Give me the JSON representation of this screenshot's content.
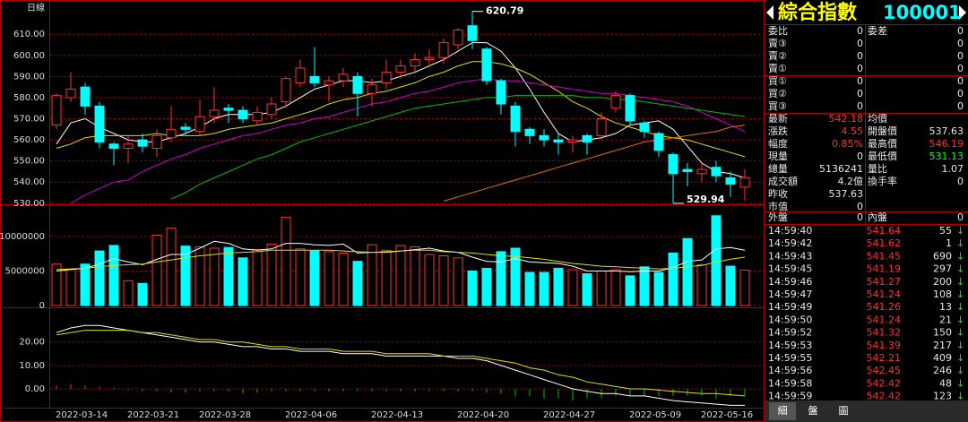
{
  "chart_data": [
    {
      "type": "candlestick",
      "label": "日線",
      "up_color": "#ff3232",
      "down_color": "#00ffff",
      "open": [
        567,
        580,
        585,
        576,
        558,
        556,
        560,
        556,
        561,
        566,
        564,
        571,
        575,
        574,
        569,
        572,
        578,
        587,
        590,
        586,
        588,
        590,
        582,
        587,
        592,
        595,
        598,
        599,
        605,
        614,
        603,
        588,
        576,
        565,
        562,
        560,
        559,
        562,
        562,
        575,
        581,
        568,
        563,
        553,
        546,
        544,
        547,
        542,
        537.63
      ],
      "high": [
        582,
        592,
        587,
        578,
        559,
        562,
        563,
        565,
        576,
        568,
        579,
        585,
        577,
        576,
        576,
        580,
        590,
        598,
        604,
        590,
        594,
        592,
        589,
        598,
        598,
        601,
        603,
        608,
        613,
        620.79,
        604,
        589,
        578,
        566,
        565,
        563,
        562,
        563,
        573,
        583,
        582,
        569,
        564,
        554,
        549,
        549,
        550,
        545,
        546.19
      ],
      "low": [
        565,
        578,
        572,
        556,
        548,
        549,
        554,
        552,
        559,
        563,
        562,
        568,
        568,
        568,
        567,
        570,
        575,
        585,
        585,
        578,
        585,
        571,
        576,
        584,
        589,
        592,
        594,
        596,
        603,
        603,
        586,
        572,
        557,
        558,
        557,
        553,
        554,
        553,
        560,
        573,
        567,
        561,
        552,
        529.94,
        538,
        540,
        540,
        533,
        531.13
      ],
      "close": [
        581,
        584,
        576,
        559,
        556,
        558,
        557,
        562,
        565,
        565,
        571,
        574,
        574,
        570,
        573,
        577,
        589,
        594,
        587,
        588,
        591,
        582,
        586,
        592,
        595,
        598,
        599,
        606,
        612,
        607,
        588,
        577,
        564,
        562,
        560,
        559,
        560,
        559,
        570,
        581,
        569,
        564,
        555,
        544,
        545,
        546,
        543,
        539,
        542.18
      ],
      "series": [
        {
          "color": "#ffffff",
          "values": [
            558,
            568,
            570,
            566,
            563,
            560,
            559,
            559,
            561,
            563,
            566,
            570,
            572,
            572,
            572,
            573,
            576,
            580,
            584,
            586,
            588,
            588,
            587,
            588,
            590,
            592,
            595,
            598,
            602,
            606,
            606,
            602,
            594,
            584,
            573,
            563,
            559,
            560,
            561,
            563,
            567,
            568,
            569,
            565,
            557,
            549,
            545,
            544,
            542
          ]
        },
        {
          "color": "#e0e000",
          "values": [
            556,
            558,
            561,
            562,
            562,
            562,
            562,
            563,
            562,
            562,
            562,
            563,
            565,
            566,
            567,
            568,
            570,
            572,
            574,
            577,
            579,
            580,
            582,
            583,
            585,
            587,
            590,
            592,
            595,
            597,
            597,
            596,
            594,
            591,
            587,
            583,
            578,
            575,
            571,
            568,
            566,
            564,
            562,
            561,
            560,
            558,
            556,
            554,
            552
          ]
        },
        {
          "color": "#d000d0",
          "values": [
            null,
            530,
            534,
            537,
            540,
            541,
            545,
            548,
            551,
            553,
            556,
            558,
            560,
            562,
            563,
            565,
            567,
            568,
            570,
            571,
            573,
            575,
            577,
            578,
            580,
            582,
            583,
            585,
            587,
            588,
            589,
            588,
            588,
            587,
            586,
            585,
            584,
            583,
            582,
            582,
            581,
            580,
            579,
            578,
            576,
            573,
            570,
            567,
            564
          ]
        },
        {
          "color": "#00c000",
          "values": [
            null,
            null,
            null,
            null,
            null,
            null,
            null,
            null,
            532,
            535,
            539,
            542,
            545,
            548,
            551,
            553,
            556,
            559,
            561,
            563,
            565,
            567,
            569,
            571,
            573,
            575,
            576,
            577,
            578,
            579,
            580,
            580,
            581,
            581,
            581,
            581,
            581,
            580,
            580,
            579,
            579,
            578,
            577,
            576,
            575,
            574,
            573,
            572,
            571
          ]
        },
        {
          "color": "#e87000",
          "values": [
            null,
            null,
            null,
            null,
            null,
            null,
            null,
            null,
            null,
            null,
            null,
            null,
            null,
            null,
            null,
            null,
            null,
            null,
            null,
            null,
            null,
            null,
            null,
            null,
            null,
            null,
            null,
            531,
            533,
            535,
            537,
            539,
            541,
            543,
            545,
            547,
            549,
            551,
            553,
            555,
            557,
            559,
            560,
            561,
            562,
            563,
            564,
            566,
            567
          ]
        }
      ],
      "ylim": [
        529.5,
        624.5
      ],
      "yticks": [
        {
          "value": 530,
          "label": "530.00"
        },
        {
          "value": 540,
          "label": "540.00"
        },
        {
          "value": 550,
          "label": "550.00"
        },
        {
          "value": 560,
          "label": "560.00"
        },
        {
          "value": 570,
          "label": "570.00"
        },
        {
          "value": 580,
          "label": "580.00"
        },
        {
          "value": 590,
          "label": "590.00"
        },
        {
          "value": 600,
          "label": "600.00"
        },
        {
          "value": 610,
          "label": "610.00"
        }
      ],
      "grid": true
    },
    {
      "type": "bar",
      "values": [
        6000000,
        5200000,
        6000000,
        7900000,
        8700000,
        3600000,
        3200000,
        10200000,
        11200000,
        8600000,
        8500000,
        8300000,
        8400000,
        6900000,
        8100000,
        8900000,
        12800000,
        8200000,
        7900000,
        7800000,
        7600000,
        6400000,
        8800000,
        8000000,
        8700000,
        8500000,
        7400000,
        7200000,
        6900000,
        5000000,
        5400000,
        7800000,
        8300000,
        4800000,
        4800000,
        5400000,
        5200000,
        4600000,
        5000000,
        5200000,
        4300000,
        5600000,
        4800000,
        7600000,
        9700000,
        5900000,
        13000000,
        5700000,
        5136241
      ],
      "series": [
        {
          "color": "#ffffff",
          "values": [
            5000000,
            5200000,
            5400000,
            6000000,
            6800000,
            6300000,
            5900000,
            6700000,
            7400000,
            7400000,
            8300000,
            9300000,
            9000000,
            8200000,
            8000000,
            8200000,
            9000000,
            9000000,
            8800000,
            8700000,
            8900000,
            7600000,
            7700000,
            7700000,
            7900000,
            8100000,
            8300000,
            7900000,
            7700000,
            7000000,
            6400000,
            6300000,
            6800000,
            6300000,
            6200000,
            6100000,
            5700000,
            5000000,
            5000000,
            5000000,
            4900000,
            5000000,
            5000000,
            5500000,
            6400000,
            6600000,
            8200000,
            8400000,
            8000000
          ]
        },
        {
          "color": "#e0e000",
          "values": [
            5200000,
            5300000,
            5400000,
            5600000,
            5800000,
            5900000,
            6000000,
            6300000,
            6600000,
            6900000,
            7200000,
            7400000,
            7600000,
            7700000,
            7800000,
            8000000,
            8000000,
            8000000,
            8000000,
            8000000,
            7900000,
            7800000,
            7700000,
            7800000,
            7900000,
            8000000,
            8000000,
            7800000,
            7700000,
            7600000,
            7400000,
            7200000,
            7100000,
            6900000,
            6700000,
            6400000,
            6100000,
            5900000,
            5700000,
            5600000,
            5500000,
            5400000,
            5300000,
            5400000,
            5600000,
            5800000,
            6300000,
            6700000,
            7000000
          ]
        }
      ],
      "ylim": [
        0,
        14400000
      ],
      "yticks": [
        0,
        5000000,
        10000000
      ],
      "grid": true
    },
    {
      "type": "line",
      "categories": [
        "2022-03-14",
        null,
        null,
        null,
        null,
        "2022-03-21",
        null,
        null,
        null,
        null,
        "2022-03-28",
        null,
        null,
        null,
        null,
        null,
        "2022-04-06",
        null,
        null,
        null,
        null,
        null,
        "2022-04-13",
        null,
        null,
        null,
        null,
        null,
        "2022-04-20",
        null,
        null,
        null,
        null,
        null,
        "2022-04-27",
        null,
        null,
        null,
        null,
        null,
        "2022-05-09",
        null,
        null,
        null,
        null,
        "2022-05-16",
        null,
        null,
        null
      ],
      "series": [
        {
          "color": "#ffffff",
          "values": [
            24,
            26,
            27,
            27,
            26,
            25,
            24,
            23,
            22,
            21,
            20,
            20,
            19,
            18,
            18,
            17,
            17,
            16,
            16,
            16,
            15,
            15,
            15,
            14,
            14,
            14,
            14,
            14,
            13,
            13,
            12,
            10,
            8,
            6,
            4,
            2,
            0,
            -1,
            -2,
            -2,
            -3,
            -3,
            -4,
            -5,
            -5.5,
            -6,
            -6.5,
            -7,
            -7
          ]
        },
        {
          "color": "#e0e000",
          "values": [
            23,
            24,
            25,
            25,
            25,
            25,
            24,
            24,
            23,
            22,
            21,
            21,
            20,
            20,
            19,
            18,
            18,
            17,
            17,
            17,
            16,
            16,
            16,
            15,
            15,
            15,
            15,
            14,
            14,
            14,
            13,
            12,
            11,
            9,
            8,
            6,
            5,
            3,
            2,
            1,
            0,
            0,
            -0.5,
            -1,
            -1.5,
            -2,
            -2,
            -2.5,
            -3
          ]
        }
      ],
      "bars": [
        1.5,
        2,
        1.5,
        1,
        0.5,
        -0.5,
        -1,
        -1,
        -1.5,
        -1.5,
        -1,
        -1,
        -1,
        -2,
        -1.5,
        -1,
        -1,
        -1,
        -1,
        -1,
        -1,
        -1,
        -1,
        -1,
        -1,
        -1,
        -1,
        -1,
        -1,
        -1,
        -1.5,
        -2,
        -3,
        -3,
        -4,
        -4,
        -5,
        -4,
        -4,
        -3,
        -3,
        -3,
        -3,
        -3,
        -3,
        -3,
        -4,
        -3,
        -3
      ],
      "bar_up_color": "#ff3232",
      "bar_down_color": "#00c000",
      "ylim": [
        -8,
        34
      ],
      "yticks": [
        {
          "value": 0,
          "label": "0.00"
        },
        {
          "value": 10,
          "label": "10.00"
        },
        {
          "value": 20,
          "label": "20.00"
        }
      ],
      "grid": true
    }
  ],
  "quote": {
    "title": "綜合指數",
    "code": "100001",
    "book": [
      [
        "委比",
        0,
        "委差",
        0
      ],
      [
        "賣③",
        0,
        0
      ],
      [
        "賣②",
        0,
        0
      ],
      [
        "賣①",
        0,
        0
      ],
      [
        "買①",
        0,
        0
      ],
      [
        "買②",
        0,
        0
      ],
      [
        "買③",
        0,
        0
      ]
    ],
    "stats": [
      [
        "最新",
        542.18,
        "均價"
      ],
      [
        "漲跌",
        4.55,
        "開盤價",
        537.63
      ],
      [
        "幅度",
        "0.85%",
        "最高價",
        546.19
      ],
      [
        "現量",
        0,
        "最低價",
        531.13
      ],
      [
        "總量",
        5136241,
        "量比",
        1.07
      ],
      [
        "成交額",
        "4.2億",
        "換手率",
        0
      ],
      [
        "昨收",
        537.63
      ],
      [
        "市值",
        0
      ]
    ],
    "flow": [
      "外盤",
      0,
      "內盤",
      0
    ],
    "trades": [
      [
        "14:59:40",
        541.64,
        55,
        "↓"
      ],
      [
        "14:59:42",
        541.62,
        1,
        "↓"
      ],
      [
        "14:59:43",
        541.45,
        690,
        "↓"
      ],
      [
        "14:59:45",
        541.19,
        297,
        "↓"
      ],
      [
        "14:59:46",
        541.27,
        200,
        "↓"
      ],
      [
        "14:59:47",
        541.24,
        108,
        "↓"
      ],
      [
        "14:59:49",
        541.26,
        13,
        "↓"
      ],
      [
        "14:59:50",
        541.24,
        21,
        "↓"
      ],
      [
        "14:59:52",
        541.32,
        150,
        "↓"
      ],
      [
        "14:59:53",
        541.39,
        217,
        "↓"
      ],
      [
        "14:59:55",
        542.21,
        409,
        "↓"
      ],
      [
        "14:59:56",
        542.45,
        246,
        "↓"
      ],
      [
        "14:59:58",
        542.42,
        48,
        "↓"
      ],
      [
        "14:59:59",
        542.42,
        123,
        "↓"
      ]
    ],
    "tabs": [
      "細",
      "盤",
      "圖"
    ]
  }
}
